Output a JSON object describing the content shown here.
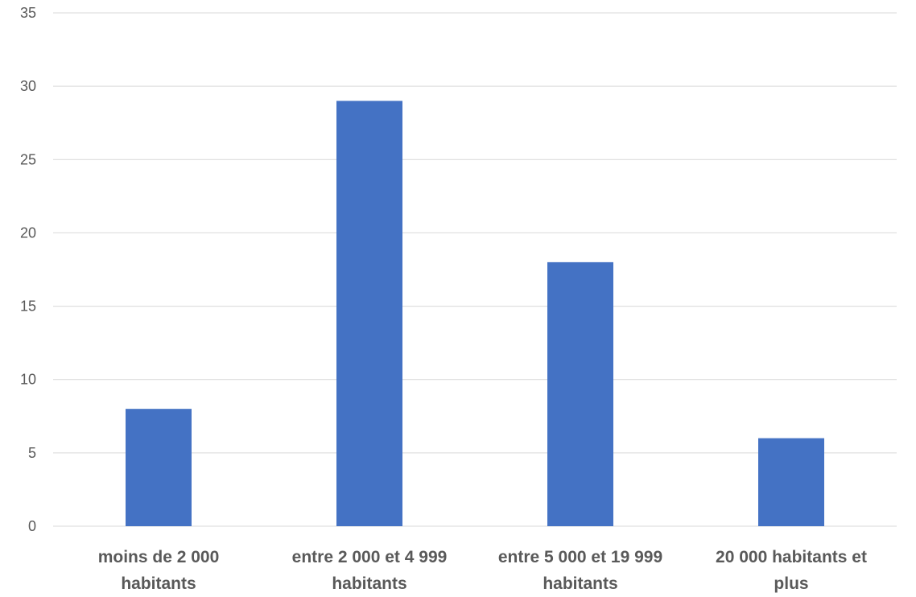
{
  "chart_data": {
    "type": "bar",
    "title": "",
    "xlabel": "",
    "ylabel": "",
    "categories": [
      [
        "moins de 2 000",
        "habitants"
      ],
      [
        "entre 2 000 et 4 999",
        "habitants"
      ],
      [
        "entre 5 000 et 19 999",
        "habitants"
      ],
      [
        "20 000 habitants et",
        "plus"
      ]
    ],
    "values": [
      8,
      29,
      18,
      6
    ],
    "ylim": [
      0,
      35
    ],
    "yticks": [
      0,
      5,
      10,
      15,
      20,
      25,
      30,
      35
    ],
    "grid": true,
    "legend": "none",
    "colors": {
      "bar": "#4472C4",
      "grid": "#D9D9D9",
      "text": "#595959"
    }
  }
}
